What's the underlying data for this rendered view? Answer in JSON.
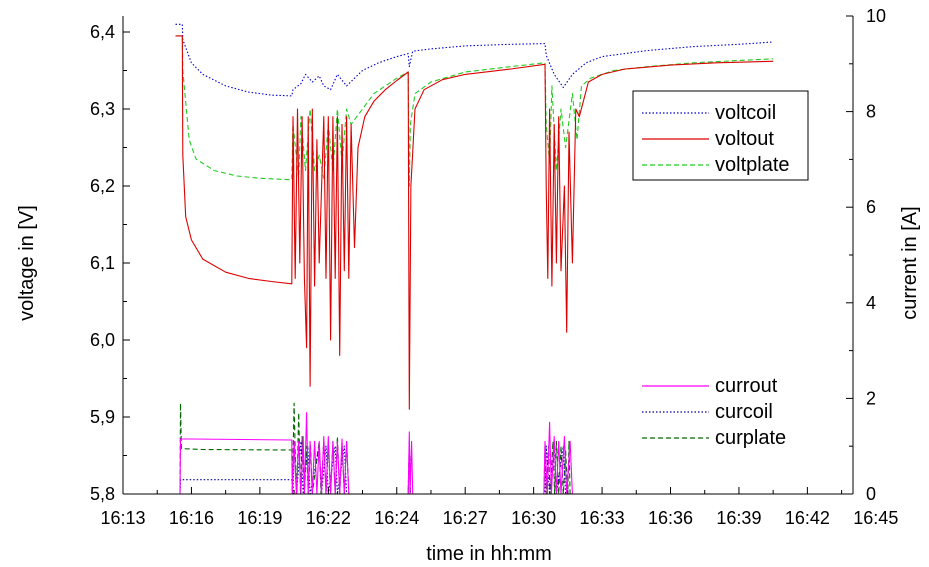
{
  "chart_data": {
    "type": "line",
    "title": "",
    "xlabel": "time in hh:mm",
    "ylabel_left": "voltage in [V]",
    "ylabel_right": "current in [A]",
    "x_ticks": [
      "16:13",
      "16:16",
      "16:19",
      "16:22",
      "16:24",
      "16:27",
      "16:30",
      "16:33",
      "16:36",
      "16:39",
      "16:42",
      "16:45"
    ],
    "y_left_ticks": [
      "5,8",
      "5,9",
      "6,0",
      "6,1",
      "6,2",
      "6,3",
      "6,4"
    ],
    "y_right_ticks": [
      "0",
      "2",
      "4",
      "6",
      "8",
      "10"
    ],
    "xlim_minutes": [
      0,
      32
    ],
    "x_origin_time": "16:13",
    "ylim_left": [
      5.8,
      6.42
    ],
    "ylim_right": [
      0,
      10
    ],
    "grid": false,
    "legend_top": {
      "placement": "top-right",
      "entries": [
        {
          "name": "voltcoil",
          "color": "#0000cc",
          "dash": "dotted"
        },
        {
          "name": "voltout",
          "color": "#dd0000",
          "dash": "solid"
        },
        {
          "name": "voltplate",
          "color": "#22cc22",
          "dash": "dashed"
        }
      ]
    },
    "legend_bottom": {
      "placement": "bottom-right",
      "entries": [
        {
          "name": "currout",
          "color": "#ff00ff",
          "dash": "solid"
        },
        {
          "name": "curcoil",
          "color": "#000099",
          "dash": "dotted"
        },
        {
          "name": "curplate",
          "color": "#006600",
          "dash": "dashed"
        }
      ]
    },
    "series": [
      {
        "name": "voltcoil",
        "axis": "left",
        "color": "#0000cc",
        "dash": "dotted",
        "points": [
          [
            2.3,
            6.41
          ],
          [
            2.6,
            6.41
          ],
          [
            2.62,
            6.39
          ],
          [
            3.0,
            6.36
          ],
          [
            3.5,
            6.345
          ],
          [
            4.5,
            6.33
          ],
          [
            5.5,
            6.322
          ],
          [
            6.5,
            6.318
          ],
          [
            7.4,
            6.317
          ],
          [
            7.45,
            6.325
          ],
          [
            7.8,
            6.333
          ],
          [
            8.0,
            6.345
          ],
          [
            8.3,
            6.335
          ],
          [
            8.6,
            6.343
          ],
          [
            8.8,
            6.33
          ],
          [
            9.1,
            6.325
          ],
          [
            9.4,
            6.345
          ],
          [
            9.8,
            6.33
          ],
          [
            10.5,
            6.35
          ],
          [
            11.2,
            6.36
          ],
          [
            12.0,
            6.368
          ],
          [
            12.5,
            6.372
          ],
          [
            12.55,
            6.355
          ],
          [
            12.7,
            6.375
          ],
          [
            13.5,
            6.378
          ],
          [
            15.0,
            6.382
          ],
          [
            17.0,
            6.384
          ],
          [
            18.5,
            6.385
          ],
          [
            18.55,
            6.37
          ],
          [
            18.9,
            6.345
          ],
          [
            19.3,
            6.328
          ],
          [
            19.7,
            6.345
          ],
          [
            20.3,
            6.36
          ],
          [
            21.0,
            6.368
          ],
          [
            23.0,
            6.376
          ],
          [
            25.0,
            6.381
          ],
          [
            27.0,
            6.384
          ],
          [
            28.5,
            6.387
          ]
        ]
      },
      {
        "name": "voltplate",
        "axis": "left",
        "color": "#22cc22",
        "dash": "dashed",
        "points": [
          [
            2.3,
            6.395
          ],
          [
            2.6,
            6.395
          ],
          [
            2.62,
            6.35
          ],
          [
            2.9,
            6.26
          ],
          [
            3.2,
            6.235
          ],
          [
            4.0,
            6.22
          ],
          [
            5.0,
            6.213
          ],
          [
            6.0,
            6.21
          ],
          [
            7.4,
            6.208
          ],
          [
            7.45,
            6.28
          ],
          [
            7.7,
            6.21
          ],
          [
            7.8,
            6.29
          ],
          [
            8.0,
            6.22
          ],
          [
            8.2,
            6.3
          ],
          [
            8.4,
            6.22
          ],
          [
            8.6,
            6.24
          ],
          [
            8.8,
            6.21
          ],
          [
            9.0,
            6.28
          ],
          [
            9.2,
            6.22
          ],
          [
            9.4,
            6.3
          ],
          [
            9.6,
            6.23
          ],
          [
            9.8,
            6.3
          ],
          [
            10.0,
            6.28
          ],
          [
            10.5,
            6.3
          ],
          [
            11.0,
            6.32
          ],
          [
            12.0,
            6.34
          ],
          [
            12.5,
            6.348
          ],
          [
            12.55,
            6.2
          ],
          [
            12.6,
            6.28
          ],
          [
            12.8,
            6.32
          ],
          [
            13.5,
            6.335
          ],
          [
            15.0,
            6.348
          ],
          [
            17.0,
            6.355
          ],
          [
            18.5,
            6.36
          ],
          [
            18.55,
            6.28
          ],
          [
            18.7,
            6.23
          ],
          [
            18.8,
            6.33
          ],
          [
            19.0,
            6.22
          ],
          [
            19.2,
            6.3
          ],
          [
            19.4,
            6.25
          ],
          [
            19.7,
            6.32
          ],
          [
            19.9,
            6.26
          ],
          [
            20.1,
            6.33
          ],
          [
            20.5,
            6.34
          ],
          [
            21.5,
            6.35
          ],
          [
            23.0,
            6.355
          ],
          [
            25.0,
            6.36
          ],
          [
            27.0,
            6.363
          ],
          [
            28.5,
            6.365
          ]
        ]
      },
      {
        "name": "voltout",
        "axis": "left",
        "color": "#dd0000",
        "dash": "solid",
        "points": [
          [
            2.3,
            6.395
          ],
          [
            2.6,
            6.395
          ],
          [
            2.62,
            6.24
          ],
          [
            2.75,
            6.16
          ],
          [
            3.0,
            6.13
          ],
          [
            3.5,
            6.105
          ],
          [
            4.5,
            6.088
          ],
          [
            5.5,
            6.08
          ],
          [
            6.5,
            6.076
          ],
          [
            7.4,
            6.073
          ],
          [
            7.45,
            6.29
          ],
          [
            7.55,
            6.08
          ],
          [
            7.65,
            6.3
          ],
          [
            7.75,
            6.1
          ],
          [
            7.85,
            6.29
          ],
          [
            7.95,
            6.08
          ],
          [
            8.05,
            5.99
          ],
          [
            8.12,
            6.29
          ],
          [
            8.2,
            5.94
          ],
          [
            8.3,
            6.3
          ],
          [
            8.4,
            6.07
          ],
          [
            8.5,
            6.26
          ],
          [
            8.6,
            6.1
          ],
          [
            8.8,
            6.29
          ],
          [
            8.9,
            6.08
          ],
          [
            9.0,
            6.29
          ],
          [
            9.1,
            6.0
          ],
          [
            9.2,
            6.29
          ],
          [
            9.3,
            6.08
          ],
          [
            9.4,
            6.29
          ],
          [
            9.5,
            5.98
          ],
          [
            9.6,
            6.28
          ],
          [
            9.7,
            6.09
          ],
          [
            9.8,
            6.29
          ],
          [
            9.9,
            6.08
          ],
          [
            10.0,
            6.28
          ],
          [
            10.15,
            6.12
          ],
          [
            10.3,
            6.25
          ],
          [
            10.6,
            6.29
          ],
          [
            11.0,
            6.31
          ],
          [
            11.5,
            6.325
          ],
          [
            12.0,
            6.337
          ],
          [
            12.5,
            6.348
          ],
          [
            12.55,
            5.91
          ],
          [
            12.62,
            6.2
          ],
          [
            12.8,
            6.3
          ],
          [
            13.2,
            6.325
          ],
          [
            14.0,
            6.338
          ],
          [
            15.0,
            6.345
          ],
          [
            17.0,
            6.352
          ],
          [
            18.5,
            6.358
          ],
          [
            18.55,
            6.2
          ],
          [
            18.62,
            6.08
          ],
          [
            18.7,
            6.3
          ],
          [
            18.8,
            6.07
          ],
          [
            18.9,
            6.28
          ],
          [
            19.0,
            6.1
          ],
          [
            19.1,
            6.29
          ],
          [
            19.2,
            6.09
          ],
          [
            19.35,
            6.2
          ],
          [
            19.45,
            6.01
          ],
          [
            19.55,
            6.27
          ],
          [
            19.7,
            6.1
          ],
          [
            19.85,
            6.3
          ],
          [
            20.0,
            6.29
          ],
          [
            20.4,
            6.335
          ],
          [
            21.0,
            6.345
          ],
          [
            22.0,
            6.352
          ],
          [
            24.0,
            6.357
          ],
          [
            26.0,
            6.36
          ],
          [
            28.5,
            6.362
          ]
        ]
      },
      {
        "name": "curplate",
        "axis": "right",
        "color": "#006600",
        "dash": "dashed",
        "points": [
          [
            2.3,
            0
          ],
          [
            2.5,
            0
          ],
          [
            2.52,
            1.9
          ],
          [
            2.56,
            0.95
          ],
          [
            3.5,
            0.93
          ],
          [
            7.4,
            0.92
          ],
          [
            7.42,
            0
          ],
          [
            7.5,
            1.9
          ],
          [
            7.55,
            0.9
          ],
          [
            7.62,
            0
          ],
          [
            7.7,
            1.7
          ],
          [
            7.78,
            0
          ],
          [
            7.85,
            1.2
          ],
          [
            7.95,
            0
          ],
          [
            8.05,
            1.0
          ],
          [
            8.12,
            0
          ],
          [
            8.22,
            1.0
          ],
          [
            8.3,
            0
          ],
          [
            8.6,
            1.1
          ],
          [
            8.68,
            0
          ],
          [
            8.8,
            1.1
          ],
          [
            8.9,
            0
          ],
          [
            9.0,
            1.0
          ],
          [
            9.1,
            0
          ],
          [
            9.2,
            1.1
          ],
          [
            9.3,
            0
          ],
          [
            9.4,
            1.2
          ],
          [
            9.5,
            0
          ],
          [
            9.6,
            1.0
          ],
          [
            9.7,
            0
          ],
          [
            9.8,
            1.1
          ],
          [
            9.9,
            0
          ],
          [
            12.5,
            0
          ],
          [
            12.55,
            1.1
          ],
          [
            12.6,
            0
          ],
          [
            18.45,
            0
          ],
          [
            18.5,
            1.0
          ],
          [
            18.55,
            0
          ],
          [
            18.65,
            1.0
          ],
          [
            18.72,
            0
          ],
          [
            18.85,
            1.1
          ],
          [
            18.92,
            0
          ],
          [
            19.0,
            1.1
          ],
          [
            19.1,
            0
          ],
          [
            19.2,
            1.0
          ],
          [
            19.3,
            0
          ],
          [
            19.4,
            0.9
          ],
          [
            19.5,
            0
          ],
          [
            19.55,
            1.1
          ],
          [
            19.6,
            0
          ],
          [
            28.5,
            0
          ]
        ]
      },
      {
        "name": "curcoil",
        "axis": "right",
        "color": "#000099",
        "dash": "dotted",
        "points": [
          [
            2.3,
            0
          ],
          [
            2.5,
            0
          ],
          [
            2.52,
            0.3
          ],
          [
            3.5,
            0.3
          ],
          [
            7.4,
            0.3
          ],
          [
            7.45,
            0
          ],
          [
            7.5,
            1.0
          ],
          [
            7.6,
            0
          ],
          [
            7.8,
            1.1
          ],
          [
            7.9,
            0
          ],
          [
            8.1,
            1.0
          ],
          [
            8.2,
            0
          ],
          [
            8.6,
            1.0
          ],
          [
            8.7,
            0
          ],
          [
            8.9,
            1.0
          ],
          [
            9.0,
            0
          ],
          [
            9.3,
            1.0
          ],
          [
            9.4,
            0
          ],
          [
            9.7,
            1.0
          ],
          [
            9.8,
            0
          ],
          [
            12.5,
            0
          ],
          [
            12.55,
            1.0
          ],
          [
            12.6,
            0
          ],
          [
            18.5,
            0
          ],
          [
            18.55,
            1.0
          ],
          [
            18.7,
            0
          ],
          [
            18.9,
            1.0
          ],
          [
            19.0,
            0
          ],
          [
            19.3,
            1.0
          ],
          [
            19.4,
            0
          ],
          [
            28.5,
            0
          ]
        ]
      },
      {
        "name": "currout",
        "axis": "right",
        "color": "#ff00ff",
        "dash": "solid",
        "points": [
          [
            2.3,
            0
          ],
          [
            2.5,
            0
          ],
          [
            2.52,
            1.15
          ],
          [
            3.0,
            1.15
          ],
          [
            7.4,
            1.13
          ],
          [
            7.42,
            0
          ],
          [
            7.5,
            1.1
          ],
          [
            7.6,
            0
          ],
          [
            7.7,
            1.1
          ],
          [
            7.8,
            0
          ],
          [
            7.9,
            1.2
          ],
          [
            7.95,
            0
          ],
          [
            8.05,
            1.7
          ],
          [
            8.12,
            0
          ],
          [
            8.2,
            1.1
          ],
          [
            8.3,
            0
          ],
          [
            8.4,
            1.1
          ],
          [
            8.5,
            0
          ],
          [
            8.6,
            1.1
          ],
          [
            8.7,
            0
          ],
          [
            8.8,
            1.2
          ],
          [
            8.9,
            0
          ],
          [
            9.0,
            1.2
          ],
          [
            9.1,
            0
          ],
          [
            9.2,
            1.1
          ],
          [
            9.3,
            0
          ],
          [
            9.4,
            1.1
          ],
          [
            9.5,
            0
          ],
          [
            9.6,
            1.15
          ],
          [
            9.7,
            0
          ],
          [
            9.8,
            1.1
          ],
          [
            9.9,
            0
          ],
          [
            12.5,
            0
          ],
          [
            12.55,
            1.3
          ],
          [
            12.58,
            0
          ],
          [
            12.65,
            1.1
          ],
          [
            12.7,
            0
          ],
          [
            18.45,
            0
          ],
          [
            18.5,
            1.1
          ],
          [
            18.6,
            0
          ],
          [
            18.7,
            1.5
          ],
          [
            18.78,
            0
          ],
          [
            18.9,
            1.2
          ],
          [
            19.0,
            0
          ],
          [
            19.1,
            1.1
          ],
          [
            19.2,
            0
          ],
          [
            19.35,
            1.2
          ],
          [
            19.45,
            0
          ],
          [
            19.6,
            1.1
          ],
          [
            19.7,
            0
          ],
          [
            28.5,
            0
          ]
        ]
      }
    ]
  }
}
